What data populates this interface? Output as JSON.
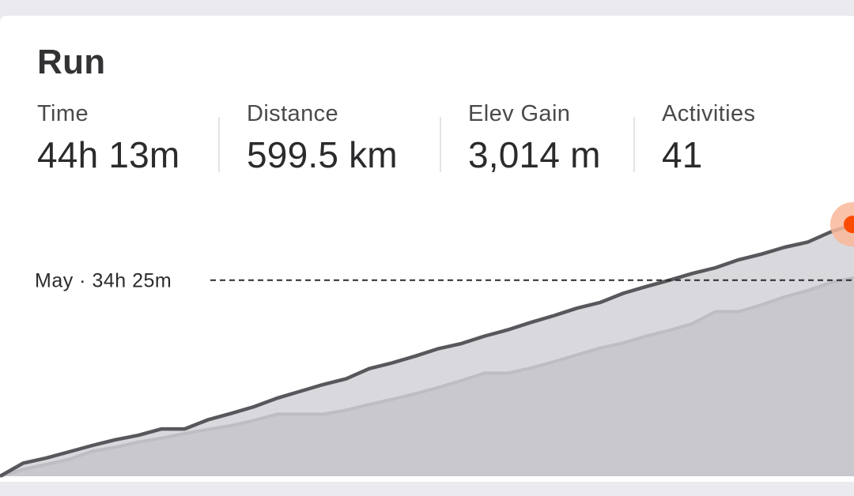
{
  "card": {
    "title": "Run"
  },
  "stats": [
    {
      "label": "Time",
      "value": "44h 13m"
    },
    {
      "label": "Distance",
      "value": "599.5 km"
    },
    {
      "label": "Elev Gain",
      "value": "3,014 m"
    },
    {
      "label": "Activities",
      "value": "41"
    }
  ],
  "reference": {
    "label": "May · 34h 25m",
    "time_hours": 34.42
  },
  "colors": {
    "current_line": "#58585c",
    "current_fill": "#d9d9dd",
    "previous_line": "#bdbdc2",
    "previous_fill": "#c8c8cd",
    "highlight": "#fc4c02",
    "highlight_halo": "#f8b79a"
  },
  "chart_data": {
    "type": "area",
    "ylabel": "",
    "xlabel": "",
    "ylim": [
      0,
      44.22
    ],
    "series": [
      {
        "values": [
          0,
          2.3,
          3.2,
          4.3,
          5.4,
          6.4,
          7.2,
          8.3,
          8.3,
          9.9,
          11.0,
          12.2,
          13.7,
          14.9,
          16.1,
          17.1,
          18.9,
          19.9,
          21.1,
          22.4,
          23.3,
          24.6,
          25.7,
          27.0,
          28.2,
          29.5,
          30.5,
          32.1,
          33.3,
          34.4,
          35.6,
          36.6,
          38.0,
          39.0,
          40.2,
          41.1,
          42.9,
          44.2
        ]
      },
      {
        "values": [
          0,
          1.2,
          2.1,
          3.0,
          4.4,
          5.1,
          6.0,
          6.7,
          7.5,
          8.2,
          8.9,
          9.8,
          10.9,
          10.9,
          10.9,
          11.6,
          12.6,
          13.5,
          14.5,
          15.6,
          16.8,
          18.1,
          18.1,
          19.0,
          20.1,
          21.3,
          22.5,
          23.4,
          24.6,
          25.6,
          26.8,
          28.9,
          28.9,
          30.1,
          31.5,
          32.6,
          34.0
        ]
      }
    ]
  }
}
